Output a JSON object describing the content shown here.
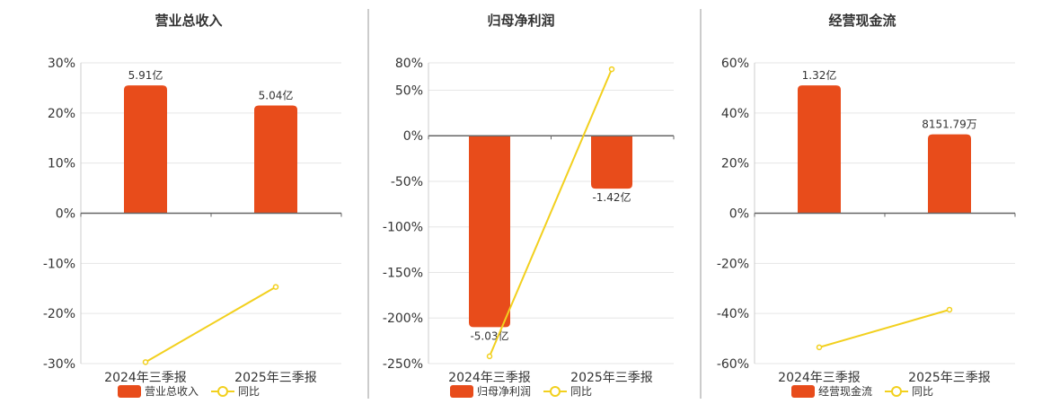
{
  "colors": {
    "bar": "#e84c1b",
    "line": "#f2d01e",
    "zero_axis": "#666666"
  },
  "chart_data": [
    {
      "type": "bar",
      "title": "营业总收入",
      "categories": [
        "2024年三季报",
        "2025年三季报"
      ],
      "ylim": [
        -30,
        30
      ],
      "ytick_labels": [
        "30%",
        "20%",
        "10%",
        "0%",
        "-10%",
        "-20%",
        "-30%"
      ],
      "series": [
        {
          "name": "营业总收入",
          "type": "bar",
          "values": [
            25.5,
            21.5
          ],
          "labels": [
            "5.91亿",
            "5.04亿"
          ]
        },
        {
          "name": "同比",
          "type": "line",
          "values": [
            -29.7,
            -14.7
          ]
        }
      ],
      "grid": true,
      "legend": "bottom"
    },
    {
      "type": "bar",
      "title": "归母净利润",
      "categories": [
        "2024年三季报",
        "2025年三季报"
      ],
      "ylim": [
        -250,
        80
      ],
      "ytick_labels": [
        "80%",
        "50%",
        "0%",
        "-50%",
        "-100%",
        "-150%",
        "-200%",
        "-250%"
      ],
      "series": [
        {
          "name": "归母净利润",
          "type": "bar",
          "values": [
            -210,
            -58
          ],
          "labels": [
            "-5.03亿",
            "-1.42亿"
          ]
        },
        {
          "name": "同比",
          "type": "line",
          "values": [
            -242,
            73
          ]
        }
      ],
      "grid": true,
      "legend": "bottom"
    },
    {
      "type": "bar",
      "title": "经营现金流",
      "categories": [
        "2024年三季报",
        "2025年三季报"
      ],
      "ylim": [
        -60,
        60
      ],
      "ytick_labels": [
        "60%",
        "40%",
        "20%",
        "0%",
        "-20%",
        "-40%",
        "-60%"
      ],
      "series": [
        {
          "name": "经营现金流",
          "type": "bar",
          "values": [
            51,
            31.5
          ],
          "labels": [
            "1.32亿",
            "8151.79万"
          ]
        },
        {
          "name": "同比",
          "type": "line",
          "values": [
            -53.5,
            -38.5
          ]
        }
      ],
      "grid": true,
      "legend": "bottom"
    }
  ]
}
